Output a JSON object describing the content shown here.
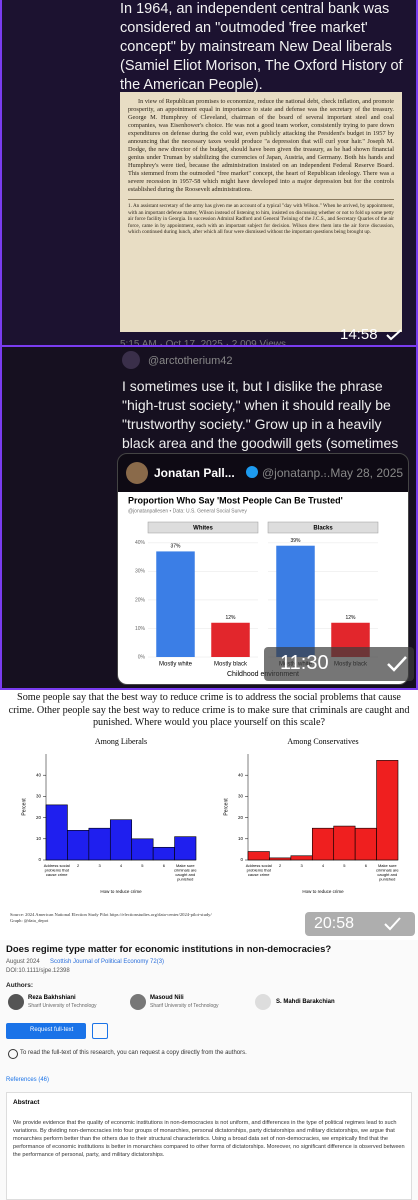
{
  "post1": {
    "text": "In 1964, an independent central bank was considered an \"outmoded 'free market' concept\" by mainstream New Deal liberals (Samiel Eliot Morison, The Oxford History of the American People).",
    "scan_paragraph": "In view of Republican promises to economize, reduce the national debt, check inflation, and promote prosperity, an appointment equal in importance to state and defense was the secretary of the treasury. George M. Humphrey of Cleveland, chairman of the board of several important steel and coal companies, was Eisenhower's choice. He was not a good team worker, consistently trying to pare down expenditures on defense during the cold war, even publicly attacking the President's budget in 1957 by announcing that the necessary taxes would produce \"a depression that will curl your hair.\" Joseph M. Dodge, the new director of the budget, should have been given the treasury, as he had shown financial genius under Truman by stabilizing the currencies of Japan, Austria, and Germany. Both his hands and Humphrey's were tied, because the administration insisted on an independent Federal Reserve Board. This stemmed from the outmoded \"free market\" concept, the heart of Republican ideology. There was a severe recession in 1957-58 which might have developed into a major depression but for the controls established during the Roosevelt administrations.",
    "scan_footnote": "1. An assistant secretary of the army has given me an account of a typical \"day with Wilson.\" When he arrived, by appointment, with an important defense matter, Wilson instead of listening to him, insisted on discussing whether or not to fold up some petty air force facility in Georgia. In succession Admiral Radford and General Twining of the J.C.S., and Secretary Quarles of the air force, came in by appointment, each with an important subject for decision. Wilson drew them into the air force discussion, which continued during lunch, after which all four were dismissed without the important questions being brought up.",
    "time": "14:58",
    "meta": "5:15 AM · Oct 17, 2025 · 2,009 Views"
  },
  "post2": {
    "handle": "@arctotherium42",
    "text": "I sometimes use it, but I dislike the phrase \"high-trust society,\" when it should really be \"trustworthy society.\" Grow up in a heavily black area and the goodwill gets (sometimes literally) beaten out.",
    "quote": {
      "name": "Jonatan Pall...",
      "handle": "@jonatanp...",
      "date": "· May 28, 2025"
    },
    "time": "11:30",
    "chart": {
      "type": "bar",
      "title": "Proportion Who Say 'Most People Can Be Trusted'",
      "subtitle": "@jonatanpallesen • Data: U.S. General Social Survey",
      "categories": [
        "Mostly white",
        "Mostly black"
      ],
      "colors": [
        "#3b7ee6",
        "#e2262c"
      ],
      "x_label": "Childhood environment",
      "ylim": [
        0,
        41
      ],
      "yticks": [
        {
          "value": 0,
          "label": "0%"
        },
        {
          "value": 10,
          "label": "10%"
        },
        {
          "value": 20,
          "label": "20%"
        },
        {
          "value": 30,
          "label": "30%"
        },
        {
          "value": 40,
          "label": "40%"
        }
      ],
      "panels": [
        {
          "name": "Whites",
          "values": [
            37,
            12
          ],
          "value_labels": [
            "37%",
            "12%"
          ]
        },
        {
          "name": "Blacks",
          "values": [
            39,
            12
          ],
          "value_labels": [
            "39%",
            "12%"
          ]
        }
      ]
    }
  },
  "post3": {
    "question": "Some people say that the best way to reduce crime is to address the social problems that cause crime. Other people say the best way to reduce crime is to make sure that criminals are caught and punished. Where would you place yourself on this scale?",
    "time": "20:58",
    "chart": {
      "type": "histogram",
      "y_label": "Percent",
      "x_label": "How to reduce crime",
      "categories": [
        "Address social problems that cause crime",
        "2",
        "3",
        "4",
        "5",
        "6",
        "Make sure criminals are caught and punished"
      ],
      "ylim": [
        0,
        50
      ],
      "yticks": [
        0,
        10,
        20,
        30,
        40
      ],
      "panels": [
        {
          "name": "Among Liberals",
          "color": "#1f1fef",
          "values": [
            26,
            14,
            15,
            19,
            10,
            6,
            11
          ]
        },
        {
          "name": "Among Conservatives",
          "color": "#ef1f1f",
          "values": [
            4,
            1,
            2,
            15,
            16,
            15,
            47
          ]
        }
      ],
      "source": "Source: 2024 American National Election Study Pilot https://electionstudies.org/data-center/2024-pilot-study/",
      "credit": "Graph: @data_depot"
    }
  },
  "post4": {
    "title": "Does regime type matter for economic institutions in non-democracies?",
    "date": "August 2024",
    "journal": "Scottish Journal of Political Economy 72(3)",
    "doi": "DOI:10.1111/sjpe.12398",
    "authors_label": "Authors:",
    "authors": [
      {
        "name": "Reza Bakhshiani",
        "affiliation": "Sharif University of Technology"
      },
      {
        "name": "Masoud Nili",
        "affiliation": "Sharif University of Technology"
      },
      {
        "name": "S. Mahdi Barakchian"
      }
    ],
    "button": "Request full-text",
    "notice": "To read the full-text of this research, you can request a copy directly from the authors.",
    "references": "References (46)",
    "abstract_label": "Abstract",
    "abstract": "We provide evidence that the quality of economic institutions in non-democracies is not uniform, and differences in the type of political regimes lead to such variations. By dividing non-democracies into four groups of monarchies, personal dictatorships, party dictatorships and military dictatorships, we argue that monarchies perform better than the others due to their structural characteristics. Using a broad data set of non-democracies, we empirically find that the performance of economic institutions is better in monarchies compared to other forms of dictatorships. Moreover, no significant difference is observed between the performance of personal, party, and military dictatorships."
  }
}
